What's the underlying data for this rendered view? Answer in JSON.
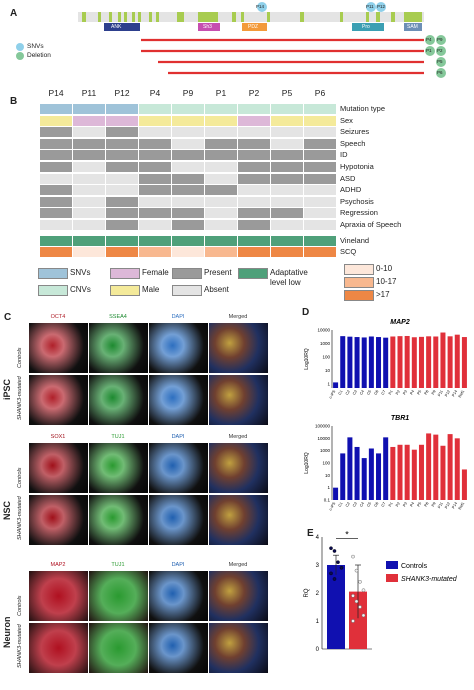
{
  "panels": {
    "a": "A",
    "b": "B",
    "c": "C",
    "d": "D",
    "e": "E"
  },
  "panelA": {
    "domains": [
      "ANK",
      "Sh3",
      "PDZ",
      "Pro",
      "SAM"
    ],
    "mut_labels": [
      "P14",
      "P11",
      "P12"
    ],
    "legend": [
      "SNVs",
      "Deletion"
    ],
    "deletion_labels": [
      [
        "P4",
        "P9"
      ],
      [
        "P1",
        "P2"
      ],
      [
        "P5"
      ],
      [
        "P6"
      ]
    ]
  },
  "panelB": {
    "patients": [
      "P14",
      "P11",
      "P12",
      "P4",
      "P9",
      "P1",
      "P2",
      "P5",
      "P6"
    ],
    "rows": [
      "Mutation type",
      "Sex",
      "Seizures",
      "Speech",
      "ID",
      "Hypotonia",
      "ASD",
      "ADHD",
      "Psychosis",
      "Regression",
      "Apraxia of Speech",
      "Vineland",
      "SCQ"
    ],
    "legend": {
      "snvs": "SNVs",
      "cnvs": "CNVs",
      "female": "Female",
      "male": "Male",
      "present": "Present",
      "absent": "Absent",
      "adapt": "Adaptative",
      "adapt2": "level low",
      "scq1": "0-10",
      "scq2": "10-17",
      "scq3": ">17"
    },
    "colors": {
      "snv": "#9fc3d9",
      "cnv": "#c7e8d8",
      "female": "#ddb8d8",
      "male": "#f4ea9a",
      "present": "#9a9a9a",
      "absent": "#e4e4e4",
      "vineland": "#4fa07a",
      "scq1": "#fde7da",
      "scq2": "#f8b88f",
      "scq3": "#ee8745"
    }
  },
  "panelC": {
    "iPSC": {
      "title": "iPSC",
      "markers": [
        "OCT4",
        "SSEA4",
        "DAPI",
        "Merged"
      ],
      "rows": [
        "Controls",
        "SHANK3-mutated"
      ]
    },
    "NSC": {
      "title": "NSC",
      "markers": [
        "SOX1",
        "TUJ1",
        "DAPI",
        "Merged"
      ],
      "rows": [
        "Controls",
        "SHANK3-mutated"
      ]
    },
    "Neuron": {
      "title": "Neuron",
      "markers": [
        "MAP2",
        "TUJ1",
        "DAPI",
        "Merged"
      ],
      "rows": [
        "Controls",
        "SHANK3-mutated"
      ]
    }
  },
  "chart_data": [
    {
      "type": "bar",
      "title": "MAP2",
      "ylabel": "Log10RQ",
      "yscale": "log",
      "yticks": [
        1,
        10,
        100,
        1000,
        10000
      ],
      "ylim": [
        0.5,
        10000
      ],
      "categories": [
        "c-iPS",
        "C1",
        "C2",
        "C3",
        "C4",
        "C5",
        "C6",
        "C7",
        "P1",
        "P2",
        "P3",
        "P4",
        "P5",
        "P6",
        "P9",
        "P11",
        "P12",
        "P14",
        "Ref1"
      ],
      "values": [
        1.3,
        3500,
        3200,
        3000,
        2800,
        3300,
        3000,
        2700,
        3300,
        3500,
        3600,
        2900,
        3100,
        3400,
        3300,
        6500,
        3400,
        4500,
        3000
      ],
      "colors": [
        "#1010b0",
        "#1010b0",
        "#1010b0",
        "#1010b0",
        "#1010b0",
        "#1010b0",
        "#1010b0",
        "#1010b0",
        "#e0303a",
        "#e0303a",
        "#e0303a",
        "#e0303a",
        "#e0303a",
        "#e0303a",
        "#e0303a",
        "#e0303a",
        "#e0303a",
        "#e0303a",
        "#e0303a"
      ]
    },
    {
      "type": "bar",
      "title": "TBR1",
      "ylabel": "Log10RQ",
      "yscale": "log",
      "yticks": [
        0.1,
        1,
        10,
        100,
        1000,
        10000,
        100000
      ],
      "ylim": [
        0.1,
        100000
      ],
      "categories": [
        "c-iPS",
        "C1",
        "C2",
        "C3",
        "C4",
        "C5",
        "C6",
        "C7",
        "P1",
        "P2",
        "P3",
        "P4",
        "P5",
        "P6",
        "P9",
        "P11",
        "P12",
        "P14",
        "Ref1"
      ],
      "values": [
        1,
        600,
        12000,
        2000,
        250,
        1500,
        600,
        12000,
        2000,
        3000,
        3000,
        1200,
        3000,
        25000,
        20000,
        2500,
        22000,
        10000,
        30
      ],
      "colors": [
        "#1010b0",
        "#1010b0",
        "#1010b0",
        "#1010b0",
        "#1010b0",
        "#1010b0",
        "#1010b0",
        "#1010b0",
        "#e0303a",
        "#e0303a",
        "#e0303a",
        "#e0303a",
        "#e0303a",
        "#e0303a",
        "#e0303a",
        "#e0303a",
        "#e0303a",
        "#e0303a",
        "#e0303a"
      ]
    },
    {
      "type": "bar",
      "ylabel": "RQ",
      "ylim": [
        0,
        4
      ],
      "yticks": [
        0,
        1,
        2,
        3,
        4
      ],
      "categories": [
        "Controls",
        "SHANK3-mutated"
      ],
      "values": [
        3.0,
        2.05
      ],
      "errors": [
        0.35,
        0.95
      ],
      "significance": "*",
      "legend": [
        "Controls",
        "SHANK3-mutated"
      ],
      "colors": [
        "#1010b0",
        "#e0303a"
      ],
      "points": [
        [
          3.6,
          3.5,
          3.1,
          2.9,
          2.7,
          2.5
        ],
        [
          3.3,
          2.8,
          2.4,
          2.1,
          1.9,
          1.7,
          1.5,
          1.2,
          1.0
        ]
      ]
    }
  ]
}
